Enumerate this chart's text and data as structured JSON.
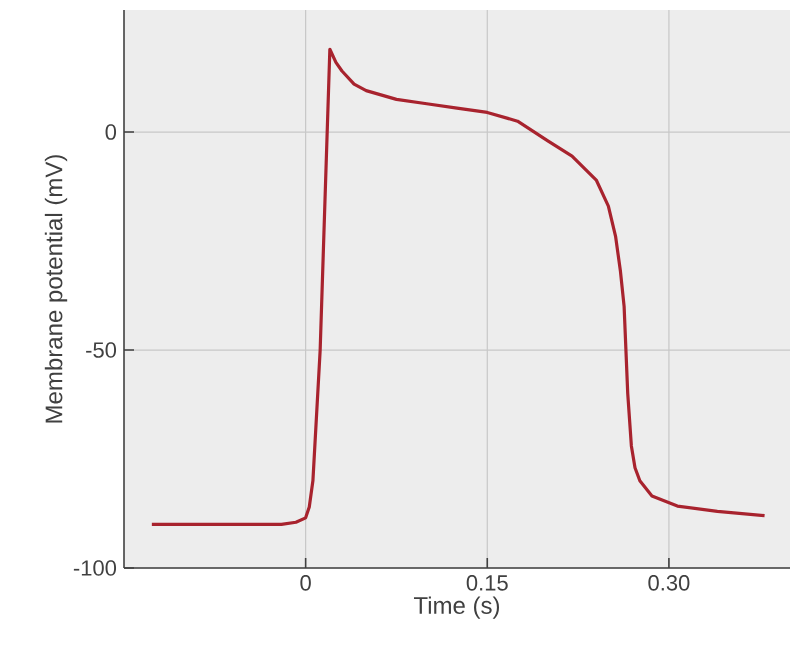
{
  "chart_data": {
    "type": "line",
    "xlabel": "Time (s)",
    "ylabel": "Membrane potential (mV)",
    "xlim": [
      -0.15,
      0.4
    ],
    "ylim": [
      -100,
      28
    ],
    "xticks": [
      0,
      {
        "value": 0.15,
        "label": "0.15"
      },
      {
        "value": 0.3,
        "label": "0.30"
      }
    ],
    "yticks": [
      -100,
      -50,
      0
    ],
    "grid": true,
    "series": [
      {
        "color": "#a8232e",
        "x": [
          -0.127,
          -0.06,
          -0.02,
          -0.008,
          0.0,
          0.003,
          0.006,
          0.012,
          0.02,
          0.025,
          0.03,
          0.04,
          0.05,
          0.075,
          0.1,
          0.125,
          0.15,
          0.175,
          0.2,
          0.22,
          0.24,
          0.25,
          0.256,
          0.26,
          0.263,
          0.266,
          0.269,
          0.272,
          0.276,
          0.286,
          0.307,
          0.34,
          0.379
        ],
        "values": [
          -90,
          -90,
          -90,
          -89.5,
          -88.5,
          -86,
          -80,
          -50,
          19,
          16,
          14,
          11,
          9.5,
          7.5,
          6.5,
          5.5,
          4.5,
          2.5,
          -2,
          -5.5,
          -11,
          -17,
          -24,
          -32,
          -40,
          -60,
          -72,
          -77,
          -80,
          -83.5,
          -85.8,
          -87,
          -88
        ]
      }
    ]
  }
}
